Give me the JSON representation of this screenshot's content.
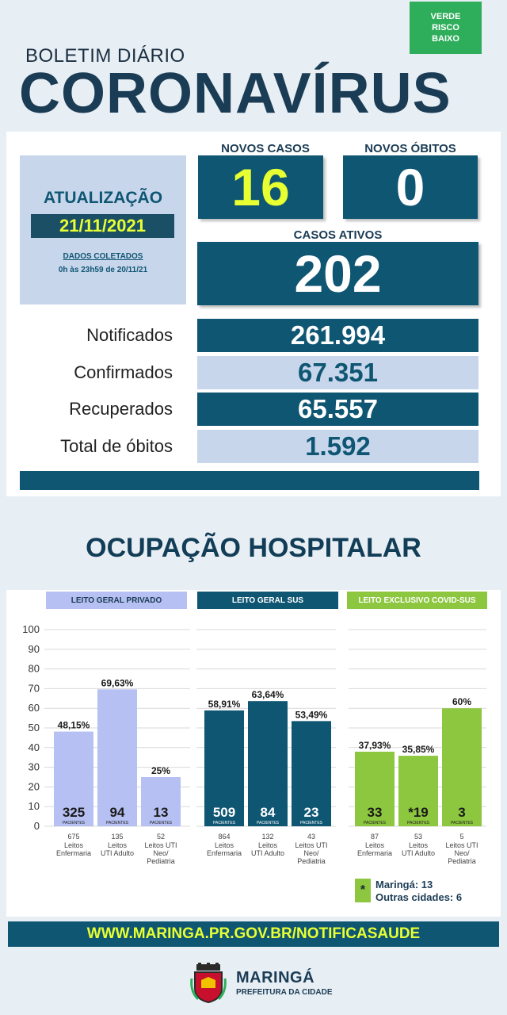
{
  "header": {
    "risk_badge": [
      "VERDE",
      "RISCO",
      "BAIXO"
    ],
    "subtitle": "BOLETIM DIÁRIO",
    "title": "CORONAVÍRUS"
  },
  "update": {
    "label": "ATUALIZAÇÃO",
    "date": "21/11/2021",
    "collected_label": "DADOS COLETADOS",
    "collected_range": "0h às 23h59 de 20/11/21"
  },
  "stats": {
    "new_cases_label": "NOVOS CASOS",
    "new_cases": "16",
    "new_deaths_label": "NOVOS ÓBITOS",
    "new_deaths": "0",
    "active_label": "CASOS ATIVOS",
    "active": "202"
  },
  "totals": [
    {
      "label": "Notificados",
      "value": "261.994"
    },
    {
      "label": "Confirmados",
      "value": "67.351"
    },
    {
      "label": "Recuperados",
      "value": "65.557"
    },
    {
      "label": "Total de óbitos",
      "value": "1.592"
    }
  ],
  "section_title": "OCUPAÇÃO HOSPITALAR",
  "colors": {
    "navy": "#0f5673",
    "light_blue": "#c8d6ec",
    "periwinkle": "#b6c0f2",
    "green": "#8dc63f",
    "yellow_text": "#e8ff32"
  },
  "chart_data": {
    "type": "bar",
    "ylim": [
      0,
      100
    ],
    "yticks": [
      0,
      10,
      20,
      30,
      40,
      50,
      60,
      70,
      80,
      90,
      100
    ],
    "groups": [
      {
        "name": "LEITO GERAL PRIVADO",
        "color": "#b6c0f2",
        "header_bg": "#b6c0f2",
        "header_text_color": "#1b3c55",
        "bar_text_color": "#1a1a1a",
        "bars": [
          {
            "value": 48.15,
            "label": "48,15%",
            "patients": "325",
            "beds": "675",
            "type": [
              "Leitos",
              "Enfermaria"
            ]
          },
          {
            "value": 69.63,
            "label": "69,63%",
            "patients": "94",
            "beds": "135",
            "type": [
              "Leitos",
              "UTI Adulto"
            ]
          },
          {
            "value": 25,
            "label": "25%",
            "patients": "13",
            "beds": "52",
            "type": [
              "Leitos UTI",
              "Neo/",
              "Pediatria"
            ]
          }
        ]
      },
      {
        "name": "LEITO GERAL SUS",
        "color": "#0f5673",
        "header_bg": "#0f5673",
        "header_text_color": "#ffffff",
        "bar_text_color": "#ffffff",
        "bars": [
          {
            "value": 58.91,
            "label": "58,91%",
            "patients": "509",
            "beds": "864",
            "type": [
              "Leitos",
              "Enfermaria"
            ]
          },
          {
            "value": 63.64,
            "label": "63,64%",
            "patients": "84",
            "beds": "132",
            "type": [
              "Leitos",
              "UTI Adulto"
            ]
          },
          {
            "value": 53.49,
            "label": "53,49%",
            "patients": "23",
            "beds": "43",
            "type": [
              "Leitos UTI",
              "Neo/",
              "Pediatria"
            ]
          }
        ]
      },
      {
        "name": "LEITO EXCLUSIVO COVID-SUS",
        "color": "#8dc63f",
        "header_bg": "#8dc63f",
        "header_text_color": "#ffffff",
        "bar_text_color": "#1a1a1a",
        "bars": [
          {
            "value": 37.93,
            "label": "37,93%",
            "patients": "33",
            "beds": "87",
            "type": [
              "Leitos",
              "Enfermaria"
            ]
          },
          {
            "value": 35.85,
            "label": "35,85%",
            "patients": "*19",
            "beds": "53",
            "type": [
              "Leitos",
              "UTI Adulto"
            ]
          },
          {
            "value": 60,
            "label": "60%",
            "patients": "3",
            "beds": "5",
            "type": [
              "Leitos UTI",
              "Neo/",
              "Pediatria"
            ]
          }
        ]
      }
    ],
    "patients_caption": "PACIENTES"
  },
  "legend": {
    "icon": "*",
    "maringa": "Maringá: 13",
    "others": "Outras cidades: 6"
  },
  "footer": {
    "url": "WWW.MARINGA.PR.GOV.BR/NOTIFICASAUDE",
    "city": "MARINGÁ",
    "city_sub": "PREFEITURA DA CIDADE"
  }
}
